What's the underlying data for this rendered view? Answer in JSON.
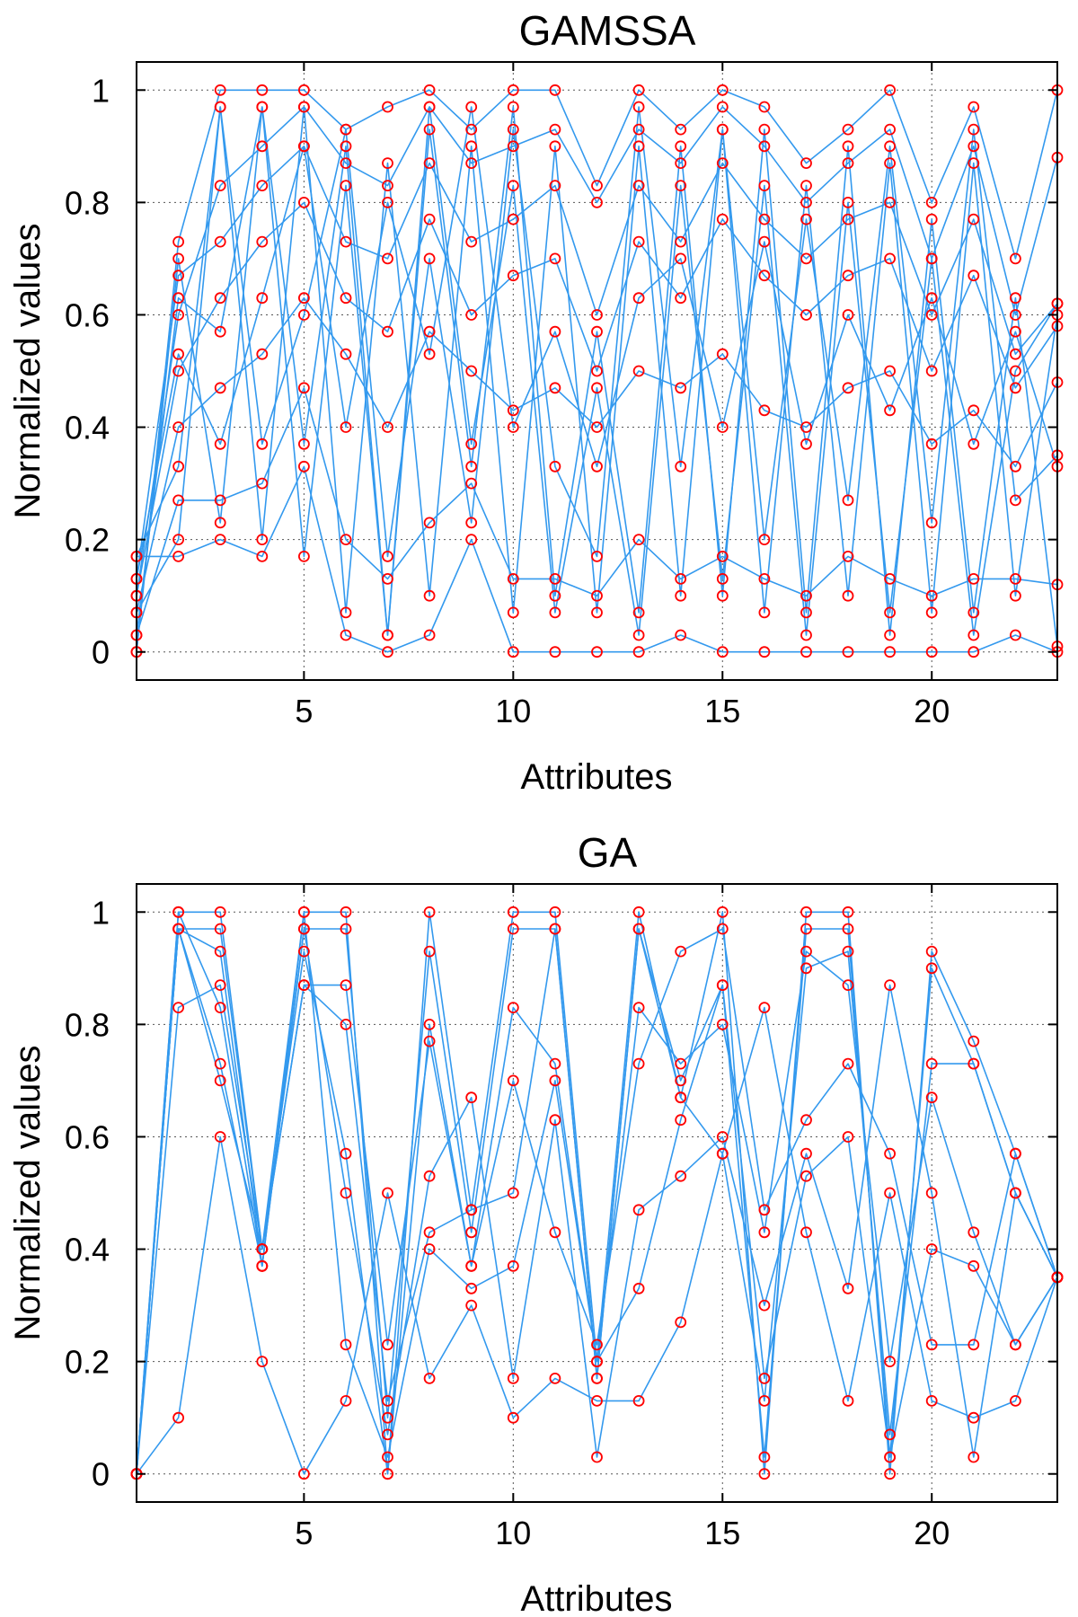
{
  "chart_data": [
    {
      "type": "line",
      "title": "GAMSSA",
      "xlabel": "Attributes",
      "ylabel": "Normalized values",
      "xlim": [
        1,
        23
      ],
      "ylim": [
        -0.05,
        1.05
      ],
      "xticks": [
        5,
        10,
        15,
        20
      ],
      "yticks": [
        0,
        0.2,
        0.4,
        0.6,
        0.8,
        1
      ],
      "grid": true,
      "legend": "none",
      "line_color": "#3399ee",
      "marker": "circle",
      "marker_color": "#ff0000",
      "x": [
        1,
        2,
        3,
        4,
        5,
        6,
        7,
        8,
        9,
        10,
        11,
        12,
        13,
        14,
        15,
        16,
        17,
        18,
        19,
        20,
        21,
        22,
        23
      ],
      "series": [
        {
          "values": [
            0.0,
            0.73,
            1.0,
            1.0,
            1.0,
            0.93,
            0.97,
            1.0,
            0.93,
            1.0,
            1.0,
            0.83,
            1.0,
            0.93,
            1.0,
            0.97,
            0.87,
            0.93,
            1.0,
            0.8,
            0.97,
            0.7,
            1.0
          ]
        },
        {
          "values": [
            0.17,
            0.17,
            0.2,
            0.17,
            0.33,
            0.03,
            0.0,
            0.03,
            0.2,
            0.0,
            0.0,
            0.0,
            0.0,
            0.03,
            0.0,
            0.0,
            0.0,
            0.0,
            0.0,
            0.0,
            0.0,
            0.03,
            0.0
          ]
        },
        {
          "values": [
            0.1,
            0.6,
            0.83,
            0.9,
            0.97,
            0.87,
            0.83,
            0.97,
            0.87,
            0.9,
            0.93,
            0.8,
            0.93,
            0.87,
            0.97,
            0.9,
            0.8,
            0.87,
            0.93,
            0.7,
            0.9,
            0.6,
            0.88
          ]
        },
        {
          "values": [
            0.07,
            0.4,
            0.47,
            0.53,
            0.63,
            0.53,
            0.4,
            0.57,
            0.5,
            0.43,
            0.47,
            0.4,
            0.5,
            0.47,
            0.53,
            0.43,
            0.4,
            0.47,
            0.5,
            0.37,
            0.43,
            0.33,
            0.48
          ]
        },
        {
          "values": [
            0.13,
            0.67,
            0.73,
            0.83,
            0.9,
            0.73,
            0.7,
            0.87,
            0.73,
            0.77,
            0.83,
            0.6,
            0.83,
            0.73,
            0.87,
            0.77,
            0.7,
            0.77,
            0.8,
            0.6,
            0.77,
            0.53,
            0.62
          ]
        },
        {
          "values": [
            0.03,
            0.27,
            0.27,
            0.3,
            0.47,
            0.2,
            0.13,
            0.23,
            0.3,
            0.13,
            0.13,
            0.1,
            0.2,
            0.13,
            0.17,
            0.13,
            0.1,
            0.17,
            0.13,
            0.1,
            0.13,
            0.13,
            0.12
          ]
        },
        {
          "values": [
            0.17,
            0.33,
            0.97,
            0.2,
            0.97,
            0.07,
            0.87,
            0.1,
            0.9,
            0.07,
            0.9,
            0.07,
            0.9,
            0.1,
            0.93,
            0.07,
            0.83,
            0.1,
            0.87,
            0.07,
            0.87,
            0.1,
            0.6
          ]
        },
        {
          "values": [
            0.0,
            0.7,
            0.23,
            0.97,
            0.37,
            0.9,
            0.03,
            0.93,
            0.33,
            0.97,
            0.1,
            0.57,
            0.07,
            0.9,
            0.1,
            0.93,
            0.07,
            0.9,
            0.03,
            0.77,
            0.07,
            0.63,
            0.01
          ]
        },
        {
          "values": [
            0.1,
            0.5,
            0.63,
            0.73,
            0.8,
            0.63,
            0.57,
            0.77,
            0.6,
            0.67,
            0.7,
            0.5,
            0.73,
            0.63,
            0.77,
            0.67,
            0.6,
            0.67,
            0.7,
            0.5,
            0.67,
            0.47,
            0.58
          ]
        },
        {
          "values": [
            0.07,
            0.2,
            0.97,
            0.37,
            0.6,
            0.93,
            0.17,
            0.7,
            0.23,
            0.93,
            0.33,
            0.17,
            0.97,
            0.33,
            0.93,
            0.2,
            0.77,
            0.27,
            0.9,
            0.23,
            0.93,
            0.27,
            0.35
          ]
        },
        {
          "values": [
            0.13,
            0.53,
            0.37,
            0.63,
            0.9,
            0.4,
            0.8,
            0.53,
            0.97,
            0.4,
            0.57,
            0.33,
            0.63,
            0.7,
            0.4,
            0.73,
            0.37,
            0.6,
            0.43,
            0.63,
            0.37,
            0.57,
            0.33
          ]
        },
        {
          "values": [
            0.03,
            0.63,
            0.57,
            0.97,
            0.17,
            0.83,
            0.03,
            0.97,
            0.37,
            0.83,
            0.07,
            0.47,
            0.03,
            0.83,
            0.13,
            0.83,
            0.03,
            0.8,
            0.07,
            0.7,
            0.03,
            0.5,
            0.62
          ]
        }
      ]
    },
    {
      "type": "line",
      "title": "GA",
      "xlabel": "Attributes",
      "ylabel": "Normalized values",
      "xlim": [
        1,
        23
      ],
      "ylim": [
        -0.05,
        1.05
      ],
      "xticks": [
        5,
        10,
        15,
        20
      ],
      "yticks": [
        0,
        0.2,
        0.4,
        0.6,
        0.8,
        1
      ],
      "grid": true,
      "legend": "none",
      "line_color": "#3399ee",
      "marker": "circle",
      "marker_color": "#ff0000",
      "x": [
        1,
        2,
        3,
        4,
        5,
        6,
        7,
        8,
        9,
        10,
        11,
        12,
        13,
        14,
        15,
        16,
        17,
        18,
        19,
        20,
        21,
        22,
        23
      ],
      "series": [
        {
          "values": [
            0.0,
            1.0,
            1.0,
            0.4,
            1.0,
            1.0,
            0.0,
            1.0,
            0.47,
            1.0,
            1.0,
            0.2,
            1.0,
            0.67,
            1.0,
            0.0,
            1.0,
            1.0,
            0.0,
            0.93,
            0.77,
            0.57,
            0.35
          ]
        },
        {
          "values": [
            0.0,
            0.97,
            0.93,
            0.37,
            0.97,
            0.97,
            0.1,
            0.93,
            0.43,
            0.97,
            0.97,
            0.17,
            0.97,
            0.7,
            0.87,
            0.03,
            0.97,
            0.97,
            0.03,
            0.9,
            0.73,
            0.5,
            0.35
          ]
        },
        {
          "values": [
            0.0,
            0.83,
            0.87,
            0.4,
            0.87,
            0.87,
            0.23,
            0.77,
            0.37,
            0.83,
            0.73,
            0.2,
            0.83,
            0.73,
            0.8,
            0.43,
            0.93,
            0.87,
            0.2,
            0.67,
            0.43,
            0.23,
            0.35
          ]
        },
        {
          "values": [
            0.0,
            0.1,
            0.6,
            0.2,
            0.0,
            0.13,
            0.5,
            0.17,
            0.3,
            0.1,
            0.17,
            0.13,
            0.13,
            0.27,
            0.57,
            0.83,
            0.43,
            0.13,
            0.5,
            0.13,
            0.1,
            0.13,
            0.35
          ]
        },
        {
          "values": [
            0.0,
            0.97,
            0.73,
            0.37,
            0.97,
            0.5,
            0.07,
            0.53,
            0.67,
            0.17,
            0.63,
            0.03,
            0.47,
            0.53,
            0.6,
            0.3,
            0.57,
            0.33,
            0.87,
            0.5,
            0.03,
            0.5,
            0.35
          ]
        },
        {
          "values": [
            0.0,
            0.97,
            0.97,
            0.4,
            0.93,
            0.57,
            0.0,
            0.8,
            0.37,
            0.7,
            0.43,
            0.23,
            0.73,
            0.93,
            0.97,
            0.47,
            0.63,
            0.73,
            0.57,
            0.23,
            0.23,
            0.57,
            0.35
          ]
        },
        {
          "values": [
            0.0,
            1.0,
            0.83,
            0.37,
            1.0,
            0.23,
            0.03,
            0.4,
            0.33,
            0.37,
            0.7,
            0.2,
            0.33,
            0.63,
            0.87,
            0.17,
            0.53,
            0.6,
            0.03,
            0.4,
            0.37,
            0.23,
            0.35
          ]
        },
        {
          "values": [
            0.0,
            0.97,
            0.7,
            0.4,
            0.87,
            0.8,
            0.13,
            0.43,
            0.47,
            0.5,
            0.97,
            0.17,
            0.97,
            0.67,
            0.57,
            0.13,
            0.9,
            0.93,
            0.07,
            0.73,
            0.73,
            0.5,
            0.35
          ]
        }
      ]
    }
  ]
}
